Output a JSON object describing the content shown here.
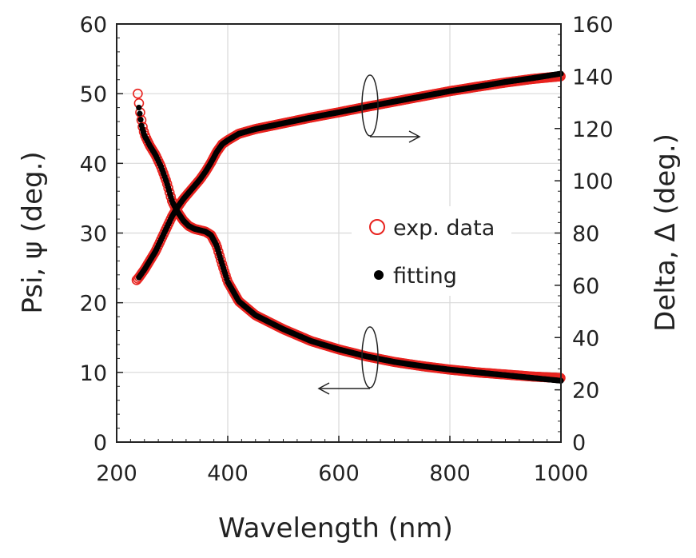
{
  "chart_data": {
    "type": "scatter",
    "xlabel": "Wavelength (nm)",
    "ylabel_left": "Psi, ψ (deg.)",
    "ylabel_right": "Delta, Δ (deg.)",
    "xlim": [
      200,
      1000
    ],
    "ylim_left": [
      0,
      60
    ],
    "ylim_right": [
      0,
      160
    ],
    "x_ticks": [
      "200",
      "400",
      "600",
      "800",
      "1000"
    ],
    "y_left_ticks": [
      "0",
      "10",
      "20",
      "30",
      "40",
      "50",
      "60"
    ],
    "y_right_ticks": [
      "0",
      "20",
      "40",
      "60",
      "80",
      "100",
      "120",
      "140",
      "160"
    ],
    "grid": true,
    "legend": {
      "placement": "center-right",
      "entries": [
        "exp. data",
        "fitting"
      ]
    },
    "series": [
      {
        "name": "exp. data",
        "marker": "open-circle",
        "color": "#e8231f",
        "psi_x": [
          238,
          242,
          246,
          250,
          255,
          260,
          270,
          280,
          290,
          300,
          310,
          320,
          330,
          340,
          350,
          360,
          370,
          380,
          390,
          400,
          420,
          450,
          500,
          550,
          600,
          650,
          700,
          750,
          800,
          850,
          900,
          950,
          1000
        ],
        "psi_y": [
          50,
          47.5,
          45.5,
          44.2,
          43.3,
          42.5,
          41.2,
          39.5,
          37.3,
          34.5,
          33,
          31.8,
          31,
          30.6,
          30.4,
          30.2,
          29.7,
          28.2,
          25.5,
          23,
          20.2,
          18.2,
          16.2,
          14.5,
          13.3,
          12.3,
          11.5,
          10.9,
          10.4,
          10,
          9.7,
          9.4,
          9.2
        ],
        "delta_x": [
          236,
          240,
          245,
          250,
          260,
          270,
          280,
          290,
          300,
          310,
          320,
          330,
          340,
          350,
          360,
          370,
          380,
          390,
          400,
          420,
          450,
          500,
          550,
          600,
          650,
          700,
          750,
          800,
          850,
          900,
          950,
          1000
        ],
        "delta_y": [
          62,
          63,
          64.5,
          66,
          69.5,
          73,
          77.5,
          82,
          86.5,
          90,
          93,
          95.5,
          98,
          100.5,
          103.5,
          107,
          111,
          114,
          115.5,
          118,
          119.8,
          122,
          124.2,
          126.2,
          128.3,
          130.3,
          132.3,
          134.3,
          136,
          137.6,
          139,
          140
        ]
      },
      {
        "name": "fitting",
        "marker": "filled-circle",
        "color": "#000000",
        "psi_x": [
          240,
          245,
          250,
          260,
          270,
          280,
          290,
          300,
          310,
          320,
          330,
          340,
          350,
          360,
          370,
          380,
          390,
          400,
          420,
          450,
          500,
          550,
          600,
          650,
          700,
          750,
          800,
          850,
          900,
          950,
          1000
        ],
        "psi_y": [
          48,
          45.3,
          44,
          42.5,
          41.2,
          39.5,
          37.3,
          34.5,
          33,
          31.8,
          31,
          30.6,
          30.4,
          30.2,
          29.7,
          28.2,
          25.5,
          23,
          20.2,
          18.2,
          16.2,
          14.5,
          13.3,
          12.3,
          11.5,
          10.9,
          10.4,
          10,
          9.6,
          9.2,
          8.8
        ],
        "delta_x": [
          240,
          245,
          250,
          260,
          270,
          280,
          290,
          300,
          310,
          320,
          330,
          340,
          350,
          360,
          370,
          380,
          390,
          400,
          420,
          450,
          500,
          550,
          600,
          650,
          700,
          750,
          800,
          850,
          900,
          950,
          1000
        ],
        "delta_y": [
          63,
          64.5,
          66,
          69.5,
          73,
          77.5,
          82,
          86.5,
          90,
          93,
          95.5,
          98,
          100.5,
          103.5,
          107,
          111,
          114,
          115.5,
          118,
          119.8,
          122,
          124.2,
          126.2,
          128.3,
          130.3,
          132.3,
          134.3,
          136,
          137.8,
          139.3,
          141
        ]
      }
    ]
  }
}
